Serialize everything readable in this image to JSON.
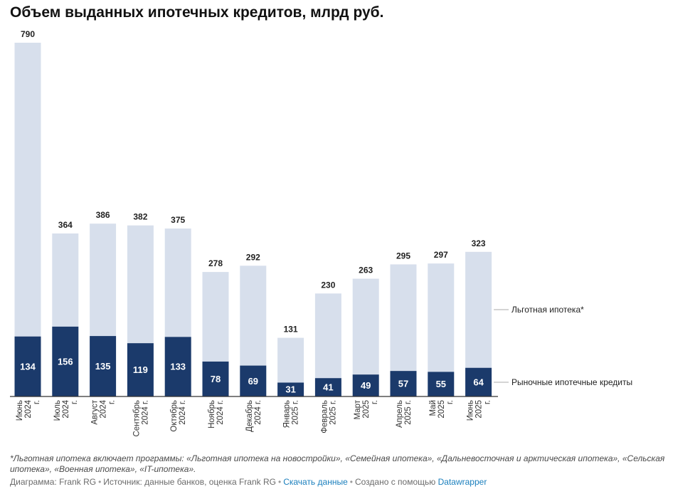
{
  "title": "Объем выданных ипотечных кредитов, млрд руб.",
  "colors": {
    "market": "#1b3a6b",
    "preferential": "#d7dfec",
    "axis": "#333333",
    "legend_line": "#aaaaaa",
    "link": "#1a7fbd"
  },
  "chart_data": {
    "type": "bar",
    "stacked": true,
    "title": "Объем выданных ипотечных кредитов, млрд руб.",
    "categories": [
      [
        "Июнь",
        "2024",
        "г."
      ],
      [
        "Июль",
        "2024",
        "г."
      ],
      [
        "Август",
        "2024",
        "г."
      ],
      [
        "Сентябрь",
        "2024 г."
      ],
      [
        "Октябрь",
        "2024 г."
      ],
      [
        "Ноябрь",
        "2024 г."
      ],
      [
        "Декабрь",
        "2024 г."
      ],
      [
        "Январь",
        "2025 г."
      ],
      [
        "Февраль",
        "2025 г."
      ],
      [
        "Март",
        "2025",
        "г."
      ],
      [
        "Апрель",
        "2025 г."
      ],
      [
        "Май",
        "2025",
        "г."
      ],
      [
        "Июнь",
        "2025",
        "г."
      ]
    ],
    "series": [
      {
        "name": "Рыночные ипотечные кредиты",
        "values": [
          134,
          156,
          135,
          119,
          133,
          78,
          69,
          31,
          41,
          49,
          57,
          55,
          64
        ]
      },
      {
        "name": "Льготная ипотека*",
        "values": [
          656,
          208,
          251,
          263,
          242,
          200,
          223,
          100,
          189,
          214,
          238,
          242,
          259
        ]
      }
    ],
    "totals": [
      790,
      364,
      386,
      382,
      375,
      278,
      292,
      131,
      230,
      263,
      295,
      297,
      323
    ],
    "ylim": [
      0,
      790
    ],
    "grid": false,
    "legend": "right, inline labels"
  },
  "footnote": "*Льготная ипотека включает программы: «Льготная ипотека на новостройки», «Семейная ипотека», «Дальневосточная и арктическая ипотека», «Сельская ипотека», «Военная ипотека», «IT-ипотека».",
  "credits": {
    "chart_by": "Диаграмма: Frank RG",
    "source": "Источник: данные банков, оценка Frank RG",
    "download": "Скачать данные",
    "created": "Создано с помощью",
    "tool": "Datawrapper"
  }
}
